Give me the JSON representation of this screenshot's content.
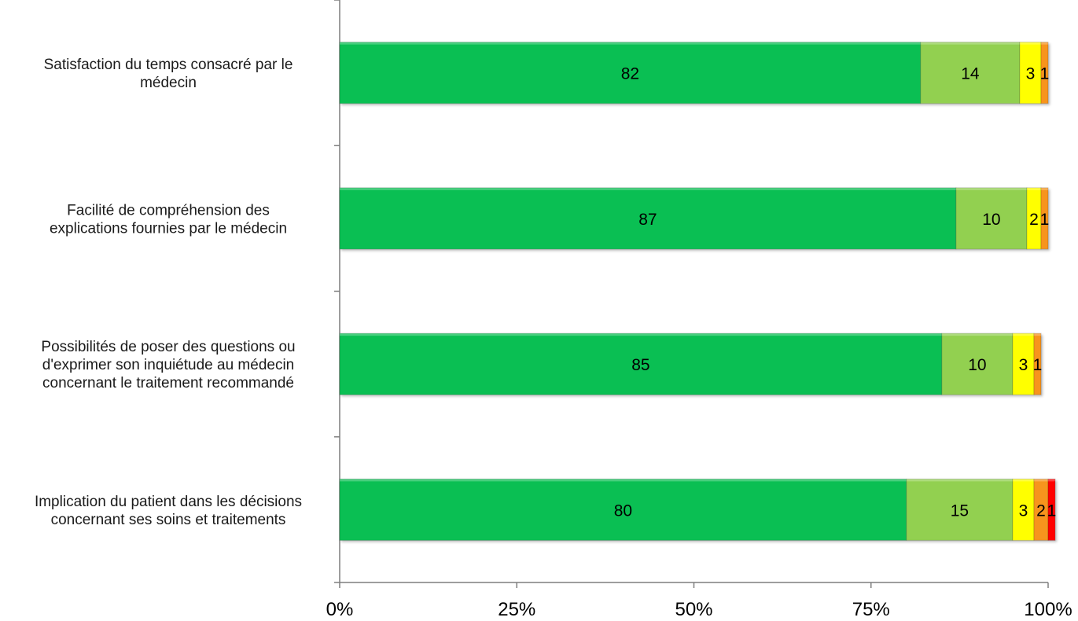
{
  "chart_data": {
    "type": "bar",
    "orientation": "horizontal",
    "stacked": "percent",
    "categories": [
      [
        "Satisfaction du temps consacré par le",
        "médecin"
      ],
      [
        "Facilité de compréhension des",
        "explications fournies par le médecin"
      ],
      [
        "Possibilités de poser des questions ou",
        "d'exprimer son inquiétude au médecin",
        "concernant le traitement recommandé"
      ],
      [
        "Implication du patient dans les décisions",
        "concernant ses soins et traitements"
      ]
    ],
    "series": [
      {
        "values": [
          82,
          87,
          85,
          80
        ],
        "color": "#0abf53",
        "label_color": "#000000"
      },
      {
        "values": [
          14,
          10,
          10,
          15
        ],
        "color": "#92d050",
        "label_color": "#000000"
      },
      {
        "values": [
          3,
          2,
          3,
          3
        ],
        "color": "#ffff00",
        "label_color": "#000000"
      },
      {
        "values": [
          1,
          1,
          1,
          2
        ],
        "color": "#f7941d",
        "label_color": "#000000"
      },
      {
        "values": [
          0,
          0,
          0,
          1
        ],
        "color": "#ff0000",
        "label_color": "#000000"
      }
    ],
    "xlim": [
      0,
      100
    ],
    "xticks": [
      "0%",
      "25%",
      "50%",
      "75%",
      "100%"
    ],
    "xtick_values": [
      0,
      25,
      50,
      75,
      100
    ],
    "legend": "none",
    "grid": false
  }
}
